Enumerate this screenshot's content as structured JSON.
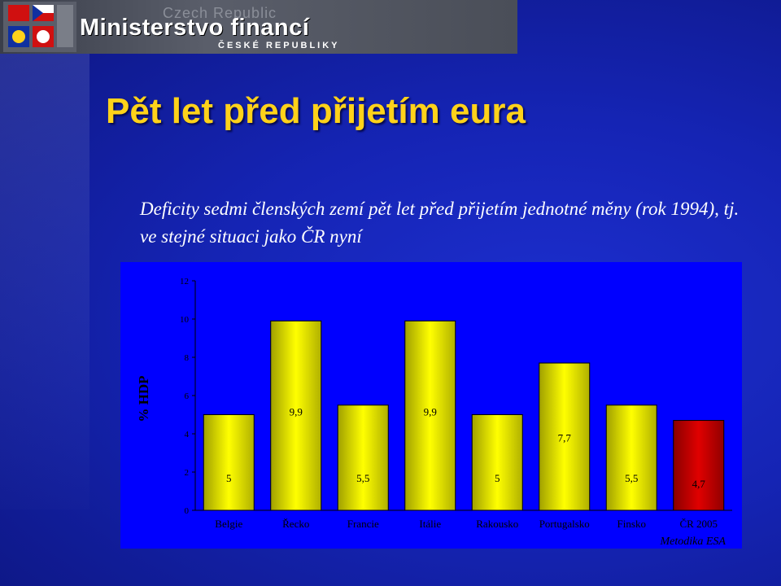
{
  "header": {
    "ghost_text": "Czech Republic",
    "title": "Ministerstvo financí",
    "subtitle": "ČESKÉ REPUBLIKY"
  },
  "slide": {
    "title": "Pět let před přijetím eura",
    "description": "Deficity sedmi členských zemí pět let před přijetím jednotné měny (rok 1994), tj. ve stejné situaci jako ČR nyní"
  },
  "colors": {
    "bar_yellow": "#ffff00",
    "bar_red": "#e00000",
    "chart_background": "#0000ff",
    "title_color": "#ffd21a"
  },
  "chart_data": {
    "type": "bar",
    "ylabel": "% HDP",
    "ylim": [
      0,
      12
    ],
    "yticks": [
      0,
      2,
      4,
      6,
      8,
      10,
      12
    ],
    "categories": [
      "Belgie",
      "Řecko",
      "Francie",
      "Itálie",
      "Rakousko",
      "Portugalsko",
      "Finsko",
      "ČR 2005"
    ],
    "values": [
      5,
      9.9,
      5.5,
      9.9,
      5,
      7.7,
      5.5,
      4.7
    ],
    "data_labels": [
      "5",
      "9,9",
      "5,5",
      "9,9",
      "5",
      "7,7",
      "5,5",
      "4,7"
    ],
    "highlight_category": "ČR 2005",
    "footnote": "Metodika ESA",
    "grid": false,
    "legend": "none"
  }
}
